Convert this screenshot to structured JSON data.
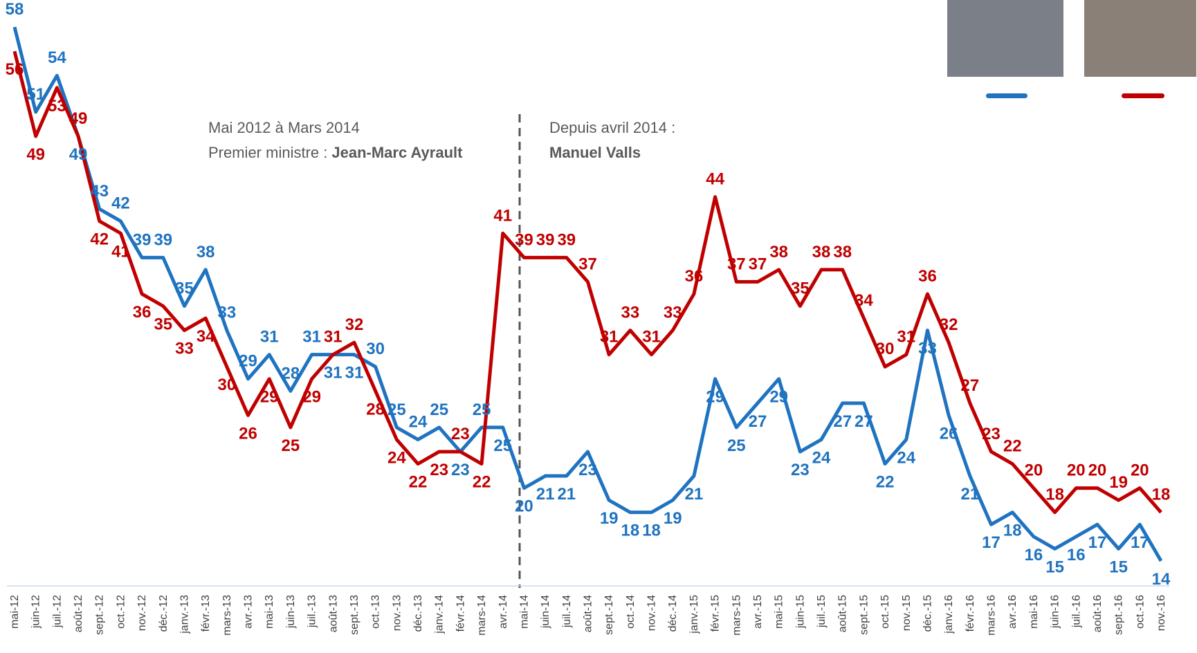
{
  "chart_data": {
    "type": "line",
    "categories": [
      "mai-12",
      "juin-12",
      "juil.-12",
      "août-12",
      "sept.-12",
      "oct.-12",
      "nov.-12",
      "déc.-12",
      "janv.-13",
      "févr.-13",
      "mars-13",
      "avr.-13",
      "mai-13",
      "juin-13",
      "juil.-13",
      "août-13",
      "sept.-13",
      "oct.-13",
      "nov.-13",
      "déc.-13",
      "janv.-14",
      "févr.-14",
      "mars-14",
      "avr.-14",
      "mai-14",
      "juin-14",
      "juil.-14",
      "août-14",
      "sept.-14",
      "oct.-14",
      "nov.-14",
      "déc.-14",
      "janv.-15",
      "févr.-15",
      "mars-15",
      "avr.-15",
      "mai-15",
      "juin-15",
      "juil.-15",
      "août-15",
      "sept.-15",
      "oct.-15",
      "nov.-15",
      "déc.-15",
      "janv.-16",
      "févr.-16",
      "mars-16",
      "avr.-16",
      "mai-16",
      "juin-16",
      "juil.-16",
      "août-16",
      "sept.-16",
      "oct.-16",
      "nov.-16"
    ],
    "series": [
      {
        "color": "#1f73c0",
        "values": [
          58,
          51,
          54,
          49,
          43,
          42,
          39,
          39,
          35,
          38,
          33,
          29,
          31,
          28,
          31,
          31,
          31,
          30,
          25,
          24,
          25,
          23,
          25,
          25,
          20,
          21,
          21,
          23,
          19,
          18,
          18,
          19,
          21,
          29,
          25,
          27,
          29,
          23,
          24,
          27,
          27,
          22,
          24,
          33,
          26,
          21,
          17,
          18,
          16,
          15,
          16,
          17,
          15,
          17,
          14
        ]
      },
      {
        "color": "#c00000",
        "values": [
          56,
          49,
          53,
          49,
          42,
          41,
          36,
          35,
          33,
          34,
          30,
          26,
          29,
          25,
          29,
          31,
          32,
          28,
          24,
          22,
          23,
          23,
          22,
          41,
          39,
          39,
          39,
          37,
          31,
          33,
          31,
          33,
          36,
          44,
          37,
          37,
          38,
          35,
          38,
          38,
          34,
          30,
          31,
          36,
          32,
          27,
          23,
          22,
          20,
          18,
          20,
          20,
          19,
          20,
          18
        ]
      }
    ],
    "ylim": [
      10,
      60
    ],
    "annotations": {
      "left_line1": "Mai 2012 à Mars 2014",
      "left_line2": "Premier ministre :",
      "left_line2_bold": "Jean-Marc Ayrault",
      "right_line1": "Depuis avril 2014 :",
      "right_line2": "Manuel Valls"
    }
  }
}
